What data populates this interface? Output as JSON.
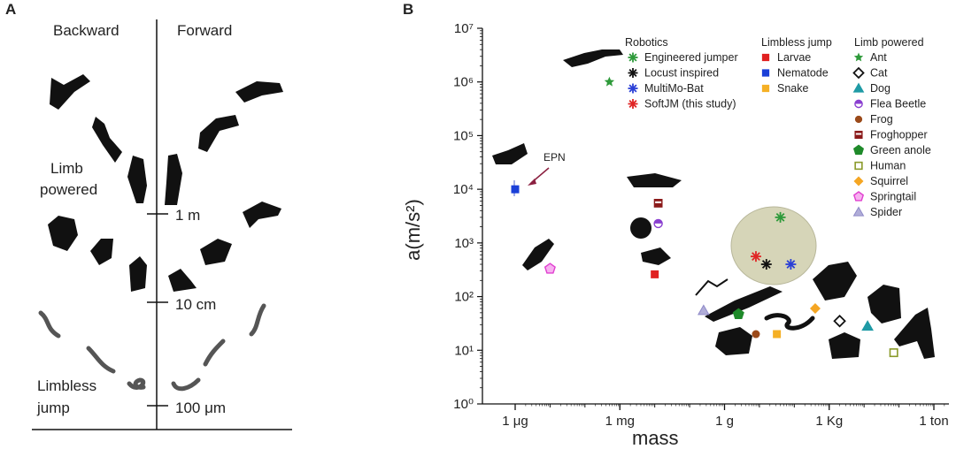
{
  "panel_a": {
    "label": "A",
    "left_heading": "Backward",
    "right_heading": "Forward",
    "group_limb": [
      "Limb",
      "powered"
    ],
    "group_limbless": [
      "Limbless",
      "jump"
    ],
    "scale_marks": [
      "1 m",
      "10 cm",
      "100 μm"
    ]
  },
  "chart_data": {
    "type": "scatter",
    "panel_label": "B",
    "xlabel": "mass",
    "ylabel": "a(m/s²)",
    "yscale": "log",
    "xscale": "log",
    "ylim_exp": [
      0,
      7
    ],
    "y_ticks": [
      "10⁰",
      "10¹",
      "10²",
      "10³",
      "10⁴",
      "10⁵",
      "10⁶",
      "10⁷"
    ],
    "x_ticks": [
      "1 μg",
      "1 mg",
      "1 g",
      "1 Kg",
      "1 ton"
    ],
    "annotation": "EPN",
    "legend_groups": [
      {
        "title": "Robotics",
        "items": [
          {
            "name": "Engineered jumper",
            "marker": "asterisk",
            "color": "#2e9a3a"
          },
          {
            "name": "Locust inspired",
            "marker": "asterisk",
            "color": "#111111"
          },
          {
            "name": "MultiMo-Bat",
            "marker": "asterisk",
            "color": "#2a3fd6"
          },
          {
            "name": "SoftJM (this study)",
            "marker": "asterisk",
            "color": "#e02525"
          }
        ]
      },
      {
        "title": "Limbless jump",
        "items": [
          {
            "name": "Larvae",
            "marker": "square",
            "color": "#e02020"
          },
          {
            "name": "Nematode",
            "marker": "square",
            "color": "#1a3fd8"
          },
          {
            "name": "Snake",
            "marker": "square",
            "color": "#f5b025"
          }
        ]
      },
      {
        "title": "Limb powered",
        "items": [
          {
            "name": "Ant",
            "marker": "star",
            "color": "#2e9a3a"
          },
          {
            "name": "Cat",
            "marker": "diamond-open",
            "color": "#111111"
          },
          {
            "name": "Dog",
            "marker": "triangle",
            "color": "#1f9aa5"
          },
          {
            "name": "Flea Beetle",
            "marker": "half-circle",
            "color": "#8a3fd0"
          },
          {
            "name": "Frog",
            "marker": "circle",
            "color": "#9b4a1a"
          },
          {
            "name": "Froghopper",
            "marker": "half-square",
            "color": "#8b1a1a"
          },
          {
            "name": "Green anole",
            "marker": "pentagon",
            "color": "#1f8a2a"
          },
          {
            "name": "Human",
            "marker": "square-open",
            "color": "#8a9a2a"
          },
          {
            "name": "Squirrel",
            "marker": "diamond",
            "color": "#f5a623"
          },
          {
            "name": "Springtail",
            "marker": "pentagon-open",
            "color": "#e040d0"
          },
          {
            "name": "Spider",
            "marker": "triangle-light",
            "color": "#8f8ac8"
          }
        ]
      }
    ],
    "points": [
      {
        "name": "Ant",
        "x_log10_g": -3.3,
        "y": 1000000
      },
      {
        "name": "Nematode",
        "x_log10_g": -6.0,
        "y": 10000
      },
      {
        "name": "Springtail",
        "x_log10_g": -5.0,
        "y": 330
      },
      {
        "name": "Froghopper",
        "x_log10_g": -1.9,
        "y": 5500
      },
      {
        "name": "Flea Beetle",
        "x_log10_g": -1.9,
        "y": 2300
      },
      {
        "name": "Larvae",
        "x_log10_g": -2.0,
        "y": 260
      },
      {
        "name": "Spider",
        "x_log10_g": -0.6,
        "y": 55
      },
      {
        "name": "Green anole",
        "x_log10_g": 0.4,
        "y": 47
      },
      {
        "name": "Frog",
        "x_log10_g": 0.9,
        "y": 20
      },
      {
        "name": "Snake",
        "x_log10_g": 1.5,
        "y": 20
      },
      {
        "name": "SoftJM (this study)",
        "x_log10_g": 0.9,
        "y": 560
      },
      {
        "name": "Locust inspired",
        "x_log10_g": 1.2,
        "y": 400
      },
      {
        "name": "MultiMo-Bat",
        "x_log10_g": 1.9,
        "y": 400
      },
      {
        "name": "Engineered jumper",
        "x_log10_g": 1.6,
        "y": 3000
      },
      {
        "name": "Squirrel",
        "x_log10_g": 2.6,
        "y": 60
      },
      {
        "name": "Cat",
        "x_log10_g": 3.3,
        "y": 35
      },
      {
        "name": "Dog",
        "x_log10_g": 4.1,
        "y": 28
      },
      {
        "name": "Human",
        "x_log10_g": 4.85,
        "y": 9
      }
    ]
  }
}
